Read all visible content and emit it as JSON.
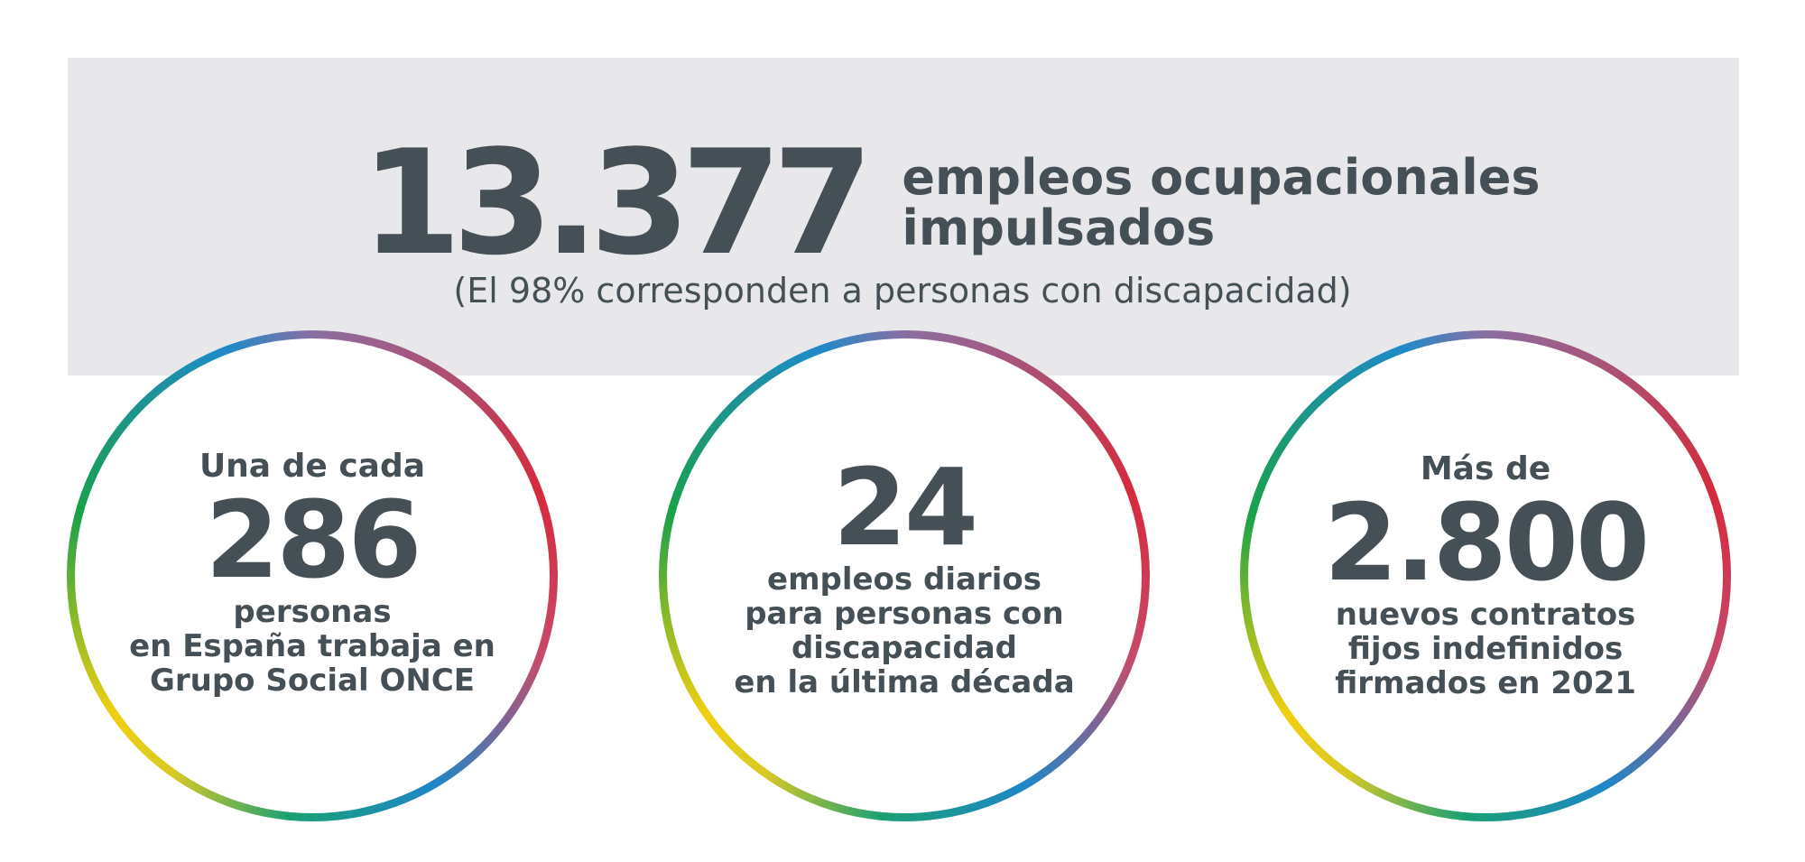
{
  "banner": {
    "big_number": "13.377",
    "headline_line1": "empleos ocupacionales",
    "headline_line2": "impulsados",
    "subline": "(El 98% corresponden a personas con discapacidad)"
  },
  "circles": [
    {
      "pre": "Una de cada",
      "number": "286",
      "lines": [
        "personas",
        "en España trabaja en",
        "Grupo Social ONCE"
      ]
    },
    {
      "pre": "",
      "number": "24",
      "lines": [
        "empleos diarios",
        "para personas con",
        "discapacidad",
        "en la última década"
      ]
    },
    {
      "pre": "Más de",
      "number": "2.800",
      "lines": [
        "nuevos contratos",
        "fijos indefinidos",
        "firmados en 2021"
      ]
    }
  ],
  "colors": {
    "text": "#454f56",
    "banner_bg": "#e8e8ea",
    "ring_red": "#d52a3b",
    "ring_blue": "#1e86c8",
    "ring_green": "#19a14a",
    "ring_yellow": "#f2cf10"
  }
}
